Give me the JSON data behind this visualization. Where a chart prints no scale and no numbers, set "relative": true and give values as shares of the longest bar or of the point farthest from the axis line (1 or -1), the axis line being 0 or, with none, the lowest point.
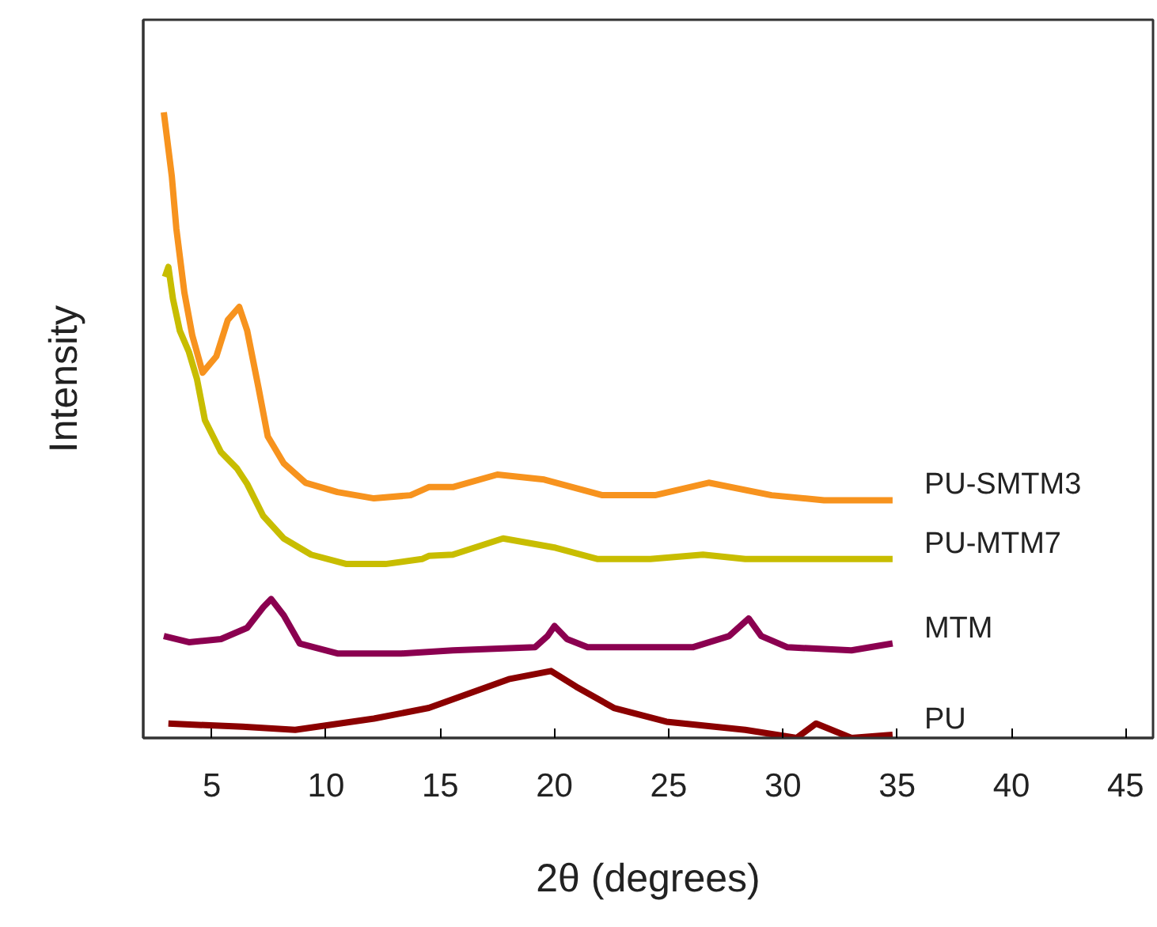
{
  "chart_data": {
    "type": "line",
    "xlabel": "2θ (degrees)",
    "ylabel": "Intensity",
    "relative": true,
    "xlim": [
      2,
      46.2
    ],
    "xticks": [
      5,
      10,
      15,
      20,
      25,
      30,
      35,
      40,
      45
    ],
    "tick_labels": "x",
    "grid": false,
    "legend": false,
    "marker": "none",
    "line_style": "solid",
    "series": [
      {
        "name": "PU-SMTM3",
        "color": "#f7931e",
        "x": [
          2.9,
          3.25,
          3.45,
          3.8,
          4.15,
          4.6,
          5.2,
          5.7,
          6.2,
          6.55,
          7.05,
          7.45,
          8.15,
          9.1,
          10.5,
          12.1,
          13.7,
          14.5,
          15.55,
          17.5,
          19.55,
          22.1,
          24.4,
          26.75,
          29.5,
          31.8,
          34.8
        ],
        "values": [
          1.0,
          0.898,
          0.814,
          0.712,
          0.643,
          0.584,
          0.61,
          0.668,
          0.689,
          0.651,
          0.559,
          0.482,
          0.439,
          0.408,
          0.393,
          0.383,
          0.388,
          0.401,
          0.401,
          0.421,
          0.413,
          0.388,
          0.388,
          0.408,
          0.388,
          0.38,
          0.38
        ]
      },
      {
        "name": "PU-MTM7",
        "color": "#c8bd00",
        "x": [
          2.95,
          3.1,
          3.3,
          3.6,
          4.0,
          4.35,
          4.7,
          5.4,
          6.1,
          6.55,
          7.25,
          8.15,
          9.35,
          10.9,
          12.6,
          14.2,
          14.5,
          15.55,
          17.75,
          20.05,
          21.9,
          24.2,
          26.5,
          28.35,
          31.8,
          34.8
        ],
        "values": [
          0.737,
          0.753,
          0.702,
          0.651,
          0.617,
          0.574,
          0.508,
          0.457,
          0.431,
          0.406,
          0.355,
          0.319,
          0.293,
          0.278,
          0.278,
          0.286,
          0.291,
          0.293,
          0.319,
          0.304,
          0.286,
          0.286,
          0.293,
          0.286,
          0.286,
          0.286
        ]
      },
      {
        "name": "MTM",
        "color": "#8b0050",
        "x": [
          2.9,
          4.0,
          5.4,
          6.55,
          7.25,
          7.6,
          8.15,
          8.85,
          10.5,
          13.3,
          15.55,
          19.15,
          19.7,
          20.0,
          20.55,
          21.45,
          26.05,
          27.65,
          28.5,
          29.05,
          30.2,
          33.0,
          34.8
        ],
        "values": [
          0.163,
          0.153,
          0.158,
          0.176,
          0.209,
          0.222,
          0.196,
          0.151,
          0.135,
          0.135,
          0.14,
          0.145,
          0.163,
          0.179,
          0.158,
          0.145,
          0.145,
          0.163,
          0.191,
          0.163,
          0.145,
          0.14,
          0.151
        ]
      },
      {
        "name": "PU",
        "color": "#8b0000",
        "x": [
          3.1,
          6.35,
          8.65,
          12.1,
          14.5,
          18.0,
          19.85,
          20.95,
          22.6,
          24.9,
          28.35,
          30.6,
          31.45,
          33.0,
          34.8
        ],
        "values": [
          0.023,
          0.018,
          0.013,
          0.031,
          0.048,
          0.094,
          0.107,
          0.082,
          0.048,
          0.026,
          0.013,
          0.0,
          0.023,
          0.0,
          0.005
        ]
      }
    ]
  }
}
